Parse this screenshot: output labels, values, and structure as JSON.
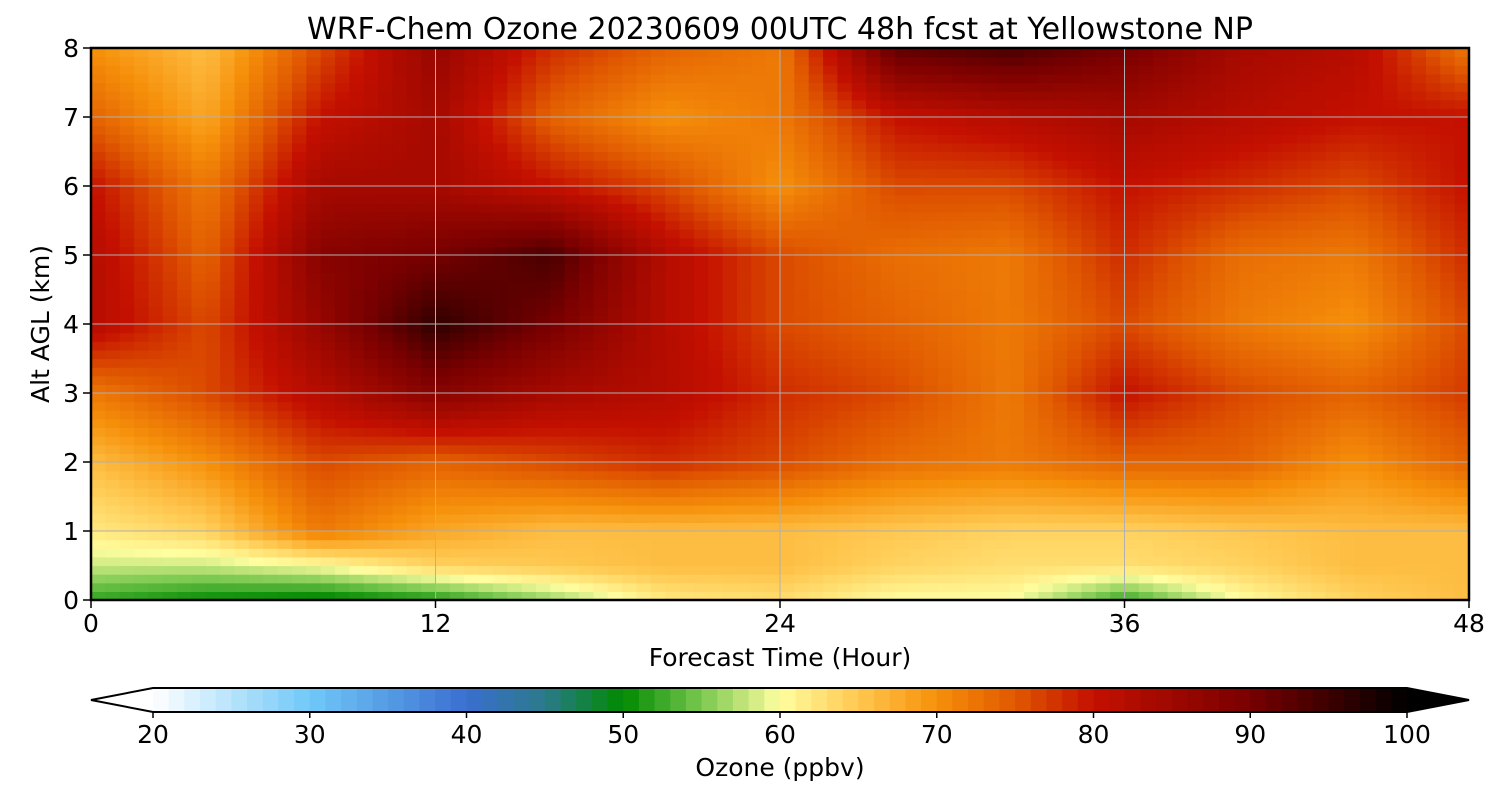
{
  "chart_data": {
    "type": "heatmap",
    "title": "WRF-Chem Ozone  20230609 00UTC 48h fcst at Yellowstone NP",
    "xlabel": "Forecast Time (Hour)",
    "ylabel": "Alt AGL (km)",
    "xlim": [
      0,
      48
    ],
    "ylim": [
      0,
      8
    ],
    "xticks": [
      0,
      12,
      24,
      36,
      48
    ],
    "yticks": [
      0,
      1,
      2,
      3,
      4,
      5,
      6,
      7,
      8
    ],
    "grid": true,
    "x": [
      0,
      4,
      8,
      12,
      16,
      20,
      24,
      28,
      32,
      36,
      40,
      44,
      48
    ],
    "y": [
      0,
      0.5,
      1,
      2,
      3,
      4,
      5,
      6,
      7,
      8
    ],
    "z": [
      [
        52,
        50,
        49,
        51,
        56,
        62,
        63,
        60,
        60,
        52,
        60,
        64,
        66
      ],
      [
        58,
        58,
        60,
        64,
        65,
        66,
        66,
        64,
        63,
        63,
        64,
        66,
        66
      ],
      [
        62,
        64,
        72,
        68,
        66,
        66,
        66,
        65,
        64,
        64,
        65,
        66,
        66
      ],
      [
        66,
        70,
        76,
        74,
        76,
        78,
        76,
        73,
        72,
        74,
        74,
        70,
        74
      ],
      [
        72,
        76,
        82,
        88,
        84,
        82,
        78,
        76,
        72,
        80,
        76,
        74,
        77
      ],
      [
        82,
        76,
        86,
        96,
        90,
        82,
        76,
        74,
        72,
        76,
        72,
        70,
        76
      ],
      [
        82,
        74,
        88,
        90,
        94,
        82,
        76,
        73,
        72,
        78,
        73,
        72,
        78
      ],
      [
        80,
        72,
        84,
        84,
        80,
        76,
        70,
        76,
        76,
        80,
        78,
        76,
        80
      ],
      [
        74,
        68,
        80,
        84,
        74,
        70,
        72,
        80,
        82,
        84,
        82,
        80,
        80
      ],
      [
        70,
        66,
        76,
        86,
        78,
        74,
        72,
        92,
        94,
        90,
        84,
        82,
        72
      ]
    ],
    "colorbar": {
      "label": "Ozone  (ppbv)",
      "min": 20,
      "max": 100,
      "ticks": [
        20,
        30,
        40,
        50,
        60,
        70,
        80,
        90,
        100
      ],
      "extend": "both",
      "stops": [
        {
          "v": 20,
          "c": "#ffffff"
        },
        {
          "v": 30,
          "c": "#70c8f8"
        },
        {
          "v": 40,
          "c": "#3a6fd0"
        },
        {
          "v": 45,
          "c": "#2a7a8a"
        },
        {
          "v": 50,
          "c": "#008a00"
        },
        {
          "v": 55,
          "c": "#7ac850"
        },
        {
          "v": 60,
          "c": "#fffea0"
        },
        {
          "v": 65,
          "c": "#ffc850"
        },
        {
          "v": 70,
          "c": "#f6900a"
        },
        {
          "v": 75,
          "c": "#e05800"
        },
        {
          "v": 80,
          "c": "#c41000"
        },
        {
          "v": 90,
          "c": "#780000"
        },
        {
          "v": 100,
          "c": "#000000"
        }
      ]
    }
  }
}
